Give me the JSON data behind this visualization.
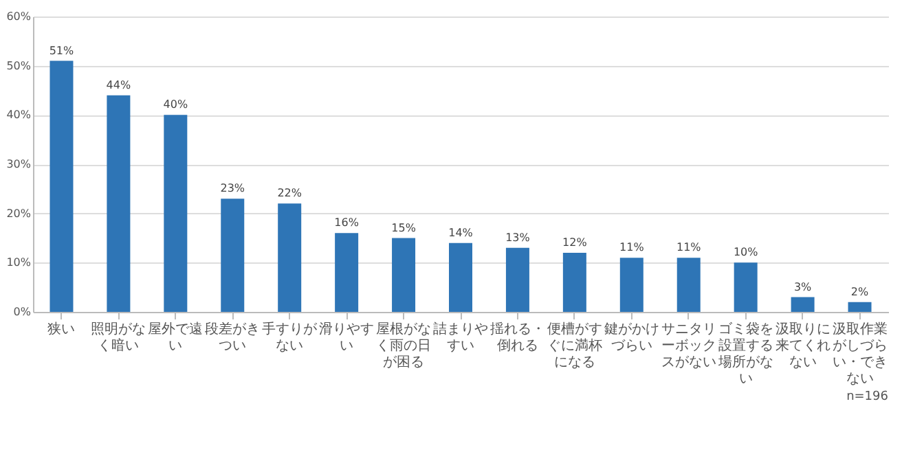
{
  "chart_data": {
    "type": "bar",
    "categories": [
      "狭い",
      "照明がなく暗い",
      "屋外で遠い",
      "段差がきつい",
      "手すりがない",
      "滑りやすい",
      "屋根がなく雨の日が困る",
      "詰まりやすい",
      "揺れる・倒れる",
      "便槽がすぐに満杯になる",
      "鍵がかけづらい",
      "サニタリーボックスがない",
      "ゴミ袋を設置する場所がない",
      "汲取りに来てくれない",
      "汲取作業がしづらい・できない"
    ],
    "values": [
      51,
      44,
      40,
      23,
      22,
      16,
      15,
      14,
      13,
      12,
      11,
      11,
      10,
      3,
      2
    ],
    "value_labels": [
      "51%",
      "44%",
      "40%",
      "23%",
      "22%",
      "16%",
      "15%",
      "14%",
      "13%",
      "12%",
      "11%",
      "11%",
      "10%",
      "3%",
      "2%"
    ],
    "color": "#2e75b6",
    "ylim": [
      0,
      60
    ],
    "yticks": [
      {
        "value": 0,
        "label": "0%"
      },
      {
        "value": 10,
        "label": "10%"
      },
      {
        "value": 20,
        "label": "20%"
      },
      {
        "value": 30,
        "label": "30%"
      },
      {
        "value": 40,
        "label": "40%"
      },
      {
        "value": 50,
        "label": "50%"
      },
      {
        "value": 60,
        "label": "60%"
      }
    ],
    "grid": "y",
    "annotations": [
      "n=196"
    ]
  }
}
